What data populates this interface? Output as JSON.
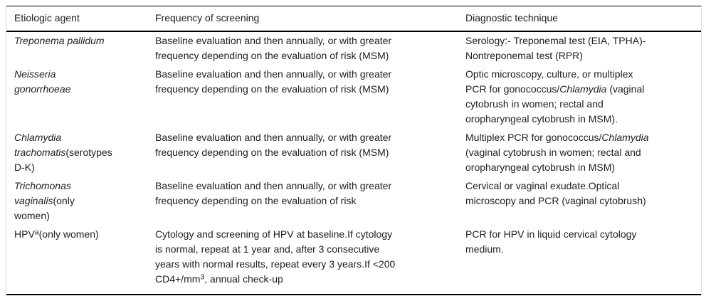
{
  "table": {
    "title": "STI screening recommendations table",
    "colors": {
      "text": "#1d1d1d",
      "rule": "#000000",
      "side_border": "#dcdcdc",
      "background": "#ffffff"
    },
    "columns": [
      {
        "id": "agent",
        "label": "Etiologic agent"
      },
      {
        "id": "frequency",
        "label": "Frequency of screening"
      },
      {
        "id": "technique",
        "label": "Diagnostic technique"
      }
    ],
    "rows": [
      {
        "agent": [
          {
            "t": "Treponema pallidum",
            "i": true
          }
        ],
        "frequency": [
          {
            "t": "Baseline evaluation and then annually, or with greater"
          },
          {
            "br": true
          },
          {
            "t": "frequency depending on the evaluation of risk (MSM)"
          }
        ],
        "technique": [
          {
            "t": "Serology:- Treponemal test (EIA, TPHA)-"
          },
          {
            "br": true
          },
          {
            "t": "Nontreponemal test (RPR)"
          }
        ]
      },
      {
        "agent": [
          {
            "t": "Neisseria",
            "i": true
          },
          {
            "br": true
          },
          {
            "t": "gonorrhoeae",
            "i": true
          }
        ],
        "frequency": [
          {
            "t": "Baseline evaluation and then annually, or with greater"
          },
          {
            "br": true
          },
          {
            "t": "frequency depending on the evaluation of risk (MSM)"
          }
        ],
        "technique": [
          {
            "t": "Optic microscopy, culture, or multiplex"
          },
          {
            "br": true
          },
          {
            "t": "PCR for gonococcus/"
          },
          {
            "t": "Chlamydia",
            "i": true
          },
          {
            "t": " (vaginal"
          },
          {
            "br": true
          },
          {
            "t": "cytobrush in women; rectal and"
          },
          {
            "br": true
          },
          {
            "t": "oropharyngeal cytobrush in MSM)."
          }
        ]
      },
      {
        "agent": [
          {
            "t": "Chlamydia",
            "i": true
          },
          {
            "br": true
          },
          {
            "t": "trachomatis",
            "i": true
          },
          {
            "t": "(serotypes"
          },
          {
            "br": true
          },
          {
            "t": "D-K)"
          }
        ],
        "frequency": [
          {
            "t": "Baseline evaluation and then annually, or with greater"
          },
          {
            "br": true
          },
          {
            "t": "frequency depending on the evaluation of risk (MSM)"
          }
        ],
        "technique": [
          {
            "t": "Multiplex PCR for gonococcus/"
          },
          {
            "t": "Chlamydia",
            "i": true
          },
          {
            "br": true
          },
          {
            "t": "(vaginal cytobrush in women; rectal and"
          },
          {
            "br": true
          },
          {
            "t": "oropharyngeal cytobrush in MSM)"
          }
        ]
      },
      {
        "agent": [
          {
            "t": "Trichomonas",
            "i": true
          },
          {
            "br": true
          },
          {
            "t": "vaginalis",
            "i": true
          },
          {
            "t": "(only"
          },
          {
            "br": true
          },
          {
            "t": "women)"
          }
        ],
        "frequency": [
          {
            "t": "Baseline evaluation and then annually, or with greater"
          },
          {
            "br": true
          },
          {
            "t": "frequency depending on the evaluation of risk"
          }
        ],
        "technique": [
          {
            "t": "Cervical or vaginal exudate.Optical"
          },
          {
            "br": true
          },
          {
            "t": "microscopy and PCR (vaginal cytobrush)"
          }
        ]
      },
      {
        "agent": [
          {
            "t": "HPV"
          },
          {
            "t": "a",
            "s": true
          },
          {
            "t": "(only women)"
          }
        ],
        "frequency": [
          {
            "t": "Cytology and screening of HPV at baseline.If cytology"
          },
          {
            "br": true
          },
          {
            "t": "is normal, repeat at 1 year and, after 3 consecutive"
          },
          {
            "br": true
          },
          {
            "t": "years with normal results, repeat every 3 years.If <200"
          },
          {
            "br": true
          },
          {
            "t": "CD4+/mm"
          },
          {
            "t": "3",
            "s": true
          },
          {
            "t": ", annual check-up"
          }
        ],
        "technique": [
          {
            "t": "PCR for HPV in liquid cervical cytology"
          },
          {
            "br": true
          },
          {
            "t": "medium."
          }
        ]
      }
    ]
  }
}
